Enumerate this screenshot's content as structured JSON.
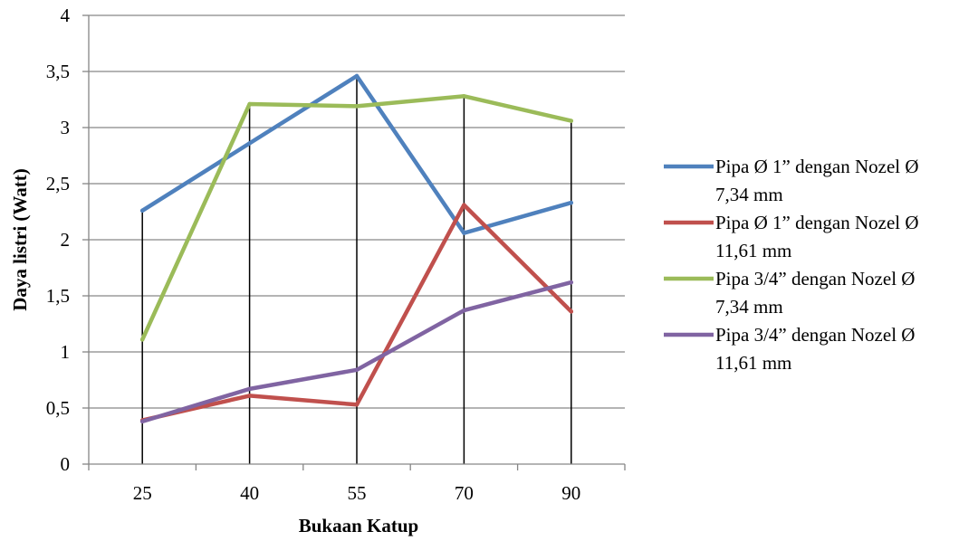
{
  "chart_data": {
    "type": "line",
    "categories": [
      "25",
      "40",
      "55",
      "70",
      "90"
    ],
    "series": [
      {
        "name": "Pipa Ø 1” dengan Nozel Ø 7,34 mm",
        "label_lines": [
          "Pipa Ø 1” dengan Nozel Ø",
          "7,34 mm"
        ],
        "values": [
          2.26,
          2.86,
          3.46,
          2.06,
          2.33
        ],
        "color": "#4f81bd"
      },
      {
        "name": "Pipa Ø 1” dengan Nozel Ø 11,61 mm",
        "label_lines": [
          "Pipa Ø 1” dengan Nozel Ø",
          "11,61 mm"
        ],
        "values": [
          0.39,
          0.61,
          0.53,
          2.31,
          1.36
        ],
        "color": "#c0504d"
      },
      {
        "name": "Pipa 3/4” dengan Nozel Ø 7,34 mm",
        "label_lines": [
          "Pipa 3/4” dengan Nozel Ø",
          "7,34 mm"
        ],
        "values": [
          1.11,
          3.21,
          3.19,
          3.28,
          3.06
        ],
        "color": "#9bbb59"
      },
      {
        "name": "Pipa 3/4” dengan Nozel Ø 11,61 mm",
        "label_lines": [
          "Pipa 3/4” dengan Nozel Ø",
          "11,61 mm"
        ],
        "values": [
          0.38,
          0.67,
          0.84,
          1.37,
          1.62
        ],
        "color": "#8064a2"
      }
    ],
    "xlabel": "Bukaan Katup",
    "ylabel": "Daya listri (Watt)",
    "ylim": [
      0,
      4
    ],
    "yticks": [
      0,
      0.5,
      1,
      1.5,
      2,
      2.5,
      3,
      3.5,
      4
    ],
    "ytick_labels": [
      "0",
      "0,5",
      "1",
      "1,5",
      "2",
      "2,5",
      "3",
      "3,5",
      "4"
    ],
    "drop_lines": true,
    "grid": "horizontal",
    "legend_position": "right"
  }
}
